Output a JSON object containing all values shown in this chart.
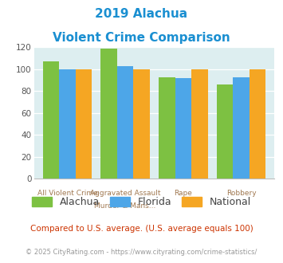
{
  "title_line1": "2019 Alachua",
  "title_line2": "Violent Crime Comparison",
  "cat_labels_top": [
    "",
    "Aggravated Assault",
    "",
    ""
  ],
  "cat_labels_bot": [
    "All Violent Crime",
    "Murder & Mans...",
    "Rape",
    "Robbery"
  ],
  "series": {
    "Alachua": [
      107,
      119,
      93,
      86
    ],
    "Florida": [
      100,
      103,
      92,
      93
    ],
    "National": [
      100,
      100,
      100,
      100
    ]
  },
  "colors": {
    "Alachua": "#7dc142",
    "Florida": "#4da6e8",
    "National": "#f5a623"
  },
  "ylim": [
    0,
    120
  ],
  "yticks": [
    0,
    20,
    40,
    60,
    80,
    100,
    120
  ],
  "bar_width": 0.22,
  "plot_bg": "#ddeef0",
  "title_color": "#1a8fd1",
  "axis_label_color": "#a07850",
  "legend_label_color": "#444444",
  "footnote1": "Compared to U.S. average. (U.S. average equals 100)",
  "footnote2": "© 2025 CityRating.com - https://www.cityrating.com/crime-statistics/",
  "footnote1_color": "#cc3300",
  "footnote2_color": "#999999",
  "footnote2_link_color": "#4da6e8"
}
